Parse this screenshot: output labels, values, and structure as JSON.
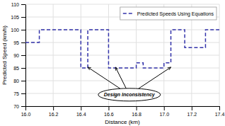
{
  "chart_data": {
    "type": "line",
    "xlabel": "Distance (km)",
    "ylabel": "Predicted Speed (km/h)",
    "x": [
      16.0,
      16.1,
      16.1,
      16.4,
      16.4,
      16.45,
      16.45,
      16.6,
      16.6,
      16.65,
      16.65,
      16.8,
      16.8,
      16.85,
      16.85,
      17.0,
      17.0,
      17.05,
      17.05,
      17.15,
      17.15,
      17.3,
      17.3,
      17.4
    ],
    "series": [
      {
        "name": "Predicted Speeds Using Equations",
        "color": "#3333aa",
        "line_style": "dashed",
        "values": [
          95,
          95,
          100,
          100,
          85,
          85,
          100,
          100,
          85,
          85,
          85,
          85,
          87,
          87,
          85,
          85,
          87,
          87,
          100,
          100,
          93,
          93,
          100,
          100
        ]
      }
    ],
    "xlim": [
      16.0,
      17.4
    ],
    "ylim": [
      70,
      110
    ],
    "xticks": [
      {
        "value": 16.0,
        "label": "16.0"
      },
      16.2,
      16.4,
      16.6,
      16.8,
      {
        "value": 17.0,
        "label": "17.0"
      },
      17.2,
      17.4
    ],
    "yticks": [
      70,
      75,
      80,
      85,
      90,
      95,
      100,
      105,
      110
    ],
    "grid": true,
    "legend": "upper right",
    "annotations": [
      {
        "text": "Design Inconsistency",
        "x": 16.75,
        "y": 74.5,
        "arrows": [
          {
            "x": 16.45,
            "y": 85.3
          },
          {
            "x": 16.65,
            "y": 85.3
          },
          {
            "x": 17.05,
            "y": 85.3
          }
        ]
      }
    ]
  }
}
